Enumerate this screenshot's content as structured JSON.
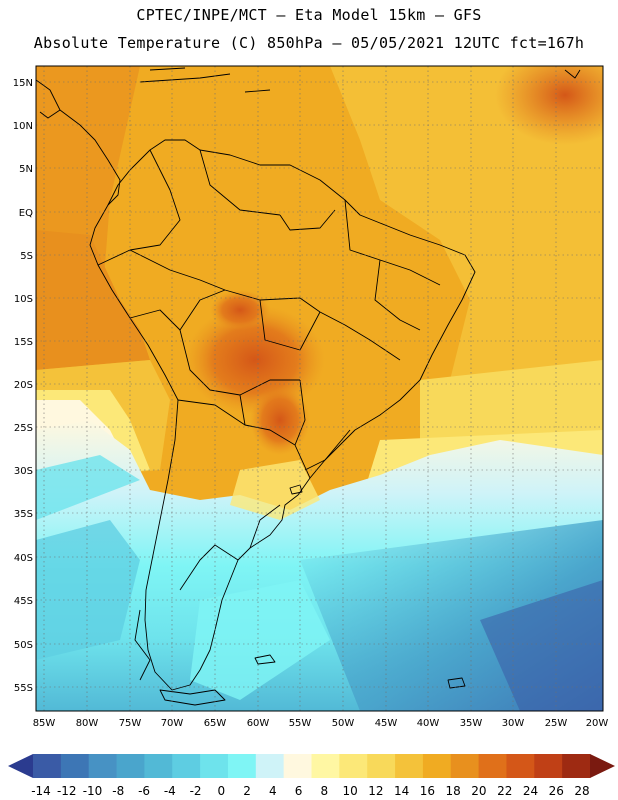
{
  "header": {
    "line1": "CPTEC/INPE/MCT  –   Eta Model 15km – GFS",
    "line2": "Absolute Temperature (C) 850hPa – 05/05/2021 12UTC fct=167h"
  },
  "axes": {
    "lat_labels": [
      "15N",
      "10N",
      "5N",
      "EQ",
      "5S",
      "10S",
      "15S",
      "20S",
      "25S",
      "30S",
      "35S",
      "40S",
      "45S",
      "50S",
      "55S"
    ],
    "lon_labels": [
      "85W",
      "80W",
      "75W",
      "70W",
      "65W",
      "60W",
      "55W",
      "50W",
      "45W",
      "40W",
      "35W",
      "30W",
      "25W",
      "20W"
    ]
  },
  "colorbar": {
    "labels": [
      "-14",
      "-12",
      "-10",
      "-8",
      "-6",
      "-4",
      "-2",
      "0",
      "2",
      "4",
      "6",
      "8",
      "10",
      "12",
      "14",
      "16",
      "18",
      "20",
      "22",
      "24",
      "26",
      "28"
    ],
    "colors": [
      "#2b3b8f",
      "#3a5ba6",
      "#3d76b5",
      "#4792c4",
      "#4aa5cc",
      "#52b9d6",
      "#5ecde2",
      "#6ee3ec",
      "#7ff5f5",
      "#cff3f8",
      "#fff8df",
      "#fff7a3",
      "#fce878",
      "#f8d95a",
      "#f4c23a",
      "#f0ab22",
      "#e8901e",
      "#e0701a",
      "#d45718",
      "#c04016",
      "#9e2a12",
      "#7a1a10"
    ]
  },
  "colors": {
    "warm_base": "#f0ab22",
    "hot": "#e0701a",
    "cold": "#52b9d6",
    "land_outline": "#000000"
  }
}
